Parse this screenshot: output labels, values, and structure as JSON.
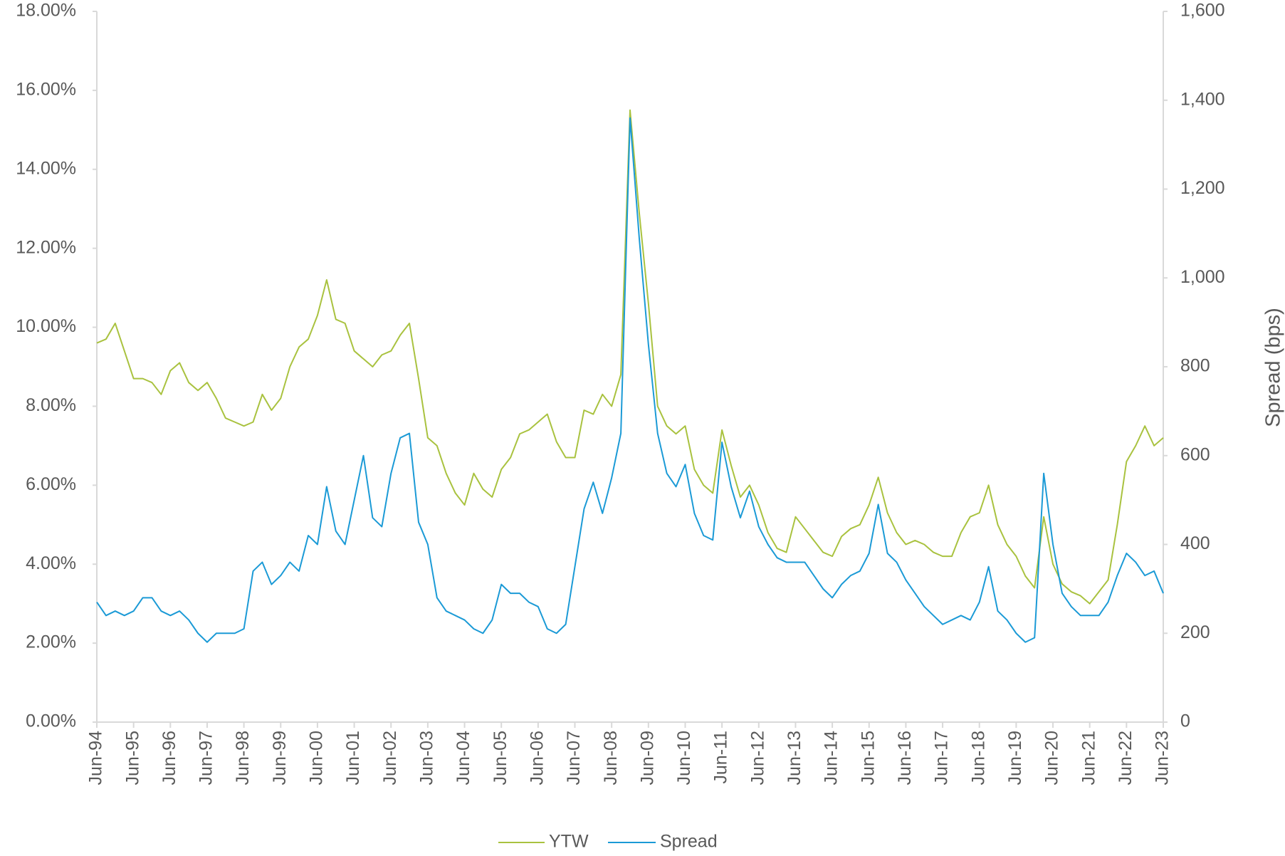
{
  "chart_data": {
    "type": "line",
    "categories": [
      "Jun-94",
      null,
      null,
      null,
      "Jun-95",
      null,
      null,
      null,
      "Jun-96",
      null,
      null,
      null,
      "Jun-97",
      null,
      null,
      null,
      "Jun-98",
      null,
      null,
      null,
      "Jun-99",
      null,
      null,
      null,
      "Jun-00",
      null,
      null,
      null,
      "Jun-01",
      null,
      null,
      null,
      "Jun-02",
      null,
      null,
      null,
      "Jun-03",
      null,
      null,
      null,
      "Jun-04",
      null,
      null,
      null,
      "Jun-05",
      null,
      null,
      null,
      "Jun-06",
      null,
      null,
      null,
      "Jun-07",
      null,
      null,
      null,
      "Jun-08",
      null,
      null,
      null,
      "Jun-09",
      null,
      null,
      null,
      "Jun-10",
      null,
      null,
      null,
      "Jun-11",
      null,
      null,
      null,
      "Jun-12",
      null,
      null,
      null,
      "Jun-13",
      null,
      null,
      null,
      "Jun-14",
      null,
      null,
      null,
      "Jun-15",
      null,
      null,
      null,
      "Jun-16",
      null,
      null,
      null,
      "Jun-17",
      null,
      null,
      null,
      "Jun-18",
      null,
      null,
      null,
      "Jun-19",
      null,
      null,
      null,
      "Jun-20",
      null,
      null,
      null,
      "Jun-21",
      null,
      null,
      null,
      "Jun-22",
      null,
      null,
      null,
      "Jun-23"
    ],
    "series": [
      {
        "name": "YTW",
        "color": "#a9c23f",
        "values": [
          9.6,
          9.7,
          10.1,
          9.4,
          8.7,
          8.7,
          8.6,
          8.3,
          8.9,
          9.1,
          8.6,
          8.4,
          8.6,
          8.2,
          7.7,
          7.6,
          7.5,
          7.6,
          8.3,
          7.9,
          8.2,
          9.0,
          9.5,
          9.7,
          10.3,
          11.2,
          10.2,
          10.1,
          9.4,
          9.2,
          9.0,
          9.3,
          9.4,
          9.8,
          10.1,
          8.7,
          7.2,
          7.0,
          6.3,
          5.8,
          5.5,
          6.3,
          5.9,
          5.7,
          6.4,
          6.7,
          7.3,
          7.4,
          7.6,
          7.8,
          7.1,
          6.7,
          6.7,
          7.9,
          7.8,
          8.3,
          8.0,
          8.8,
          15.5,
          12.9,
          10.6,
          8.0,
          7.5,
          7.3,
          7.5,
          6.4,
          6.0,
          5.8,
          7.4,
          6.5,
          5.7,
          6.0,
          5.5,
          4.8,
          4.4,
          4.3,
          5.2,
          4.9,
          4.6,
          4.3,
          4.2,
          4.7,
          4.9,
          5.0,
          5.5,
          6.2,
          5.3,
          4.8,
          4.5,
          4.6,
          4.5,
          4.3,
          4.2,
          4.2,
          4.8,
          5.2,
          5.3,
          6.0,
          5.0,
          4.5,
          4.2,
          3.7,
          3.4,
          5.2,
          4.0,
          3.5,
          3.3,
          3.2,
          3.0,
          3.3,
          3.6,
          5.0,
          6.6,
          7.0,
          7.5,
          7.0,
          7.2
        ]
      },
      {
        "name": "Spread",
        "color": "#1b9ad6",
        "axis": "y2",
        "values": [
          270,
          240,
          250,
          240,
          250,
          280,
          280,
          250,
          240,
          250,
          230,
          200,
          180,
          200,
          200,
          200,
          210,
          340,
          360,
          310,
          330,
          360,
          340,
          420,
          400,
          530,
          430,
          400,
          500,
          600,
          460,
          440,
          560,
          640,
          650,
          450,
          400,
          280,
          250,
          240,
          230,
          210,
          200,
          230,
          310,
          290,
          290,
          270,
          260,
          210,
          200,
          220,
          350,
          480,
          540,
          470,
          550,
          650,
          1360,
          1090,
          850,
          650,
          560,
          530,
          580,
          470,
          420,
          410,
          630,
          530,
          460,
          520,
          440,
          400,
          370,
          360,
          360,
          360,
          330,
          300,
          280,
          310,
          330,
          340,
          380,
          490,
          380,
          360,
          320,
          290,
          260,
          240,
          220,
          230,
          240,
          230,
          270,
          350,
          250,
          230,
          200,
          180,
          190,
          560,
          400,
          290,
          260,
          240,
          240,
          240,
          270,
          330,
          380,
          360,
          330,
          340,
          290
        ]
      }
    ],
    "ylim": [
      0,
      18
    ],
    "yticks": [
      {
        "value": 0,
        "label": "0.00%"
      },
      {
        "value": 2,
        "label": "2.00%"
      },
      {
        "value": 4,
        "label": "4.00%"
      },
      {
        "value": 6,
        "label": "6.00%"
      },
      {
        "value": 8,
        "label": "8.00%"
      },
      {
        "value": 10,
        "label": "10.00%"
      },
      {
        "value": 12,
        "label": "12.00%"
      },
      {
        "value": 14,
        "label": "14.00%"
      },
      {
        "value": 16,
        "label": "16.00%"
      },
      {
        "value": 18,
        "label": "18.00%"
      }
    ],
    "y2lim": [
      0,
      1600
    ],
    "y2ticks": [
      0,
      200,
      400,
      600,
      800,
      {
        "value": 1000,
        "label": "1,000"
      },
      {
        "value": 1200,
        "label": "1,200"
      },
      {
        "value": 1400,
        "label": "1,400"
      },
      {
        "value": 1600,
        "label": "1,600"
      }
    ],
    "y2label": "Spread (bps)",
    "legend": "bottom"
  }
}
